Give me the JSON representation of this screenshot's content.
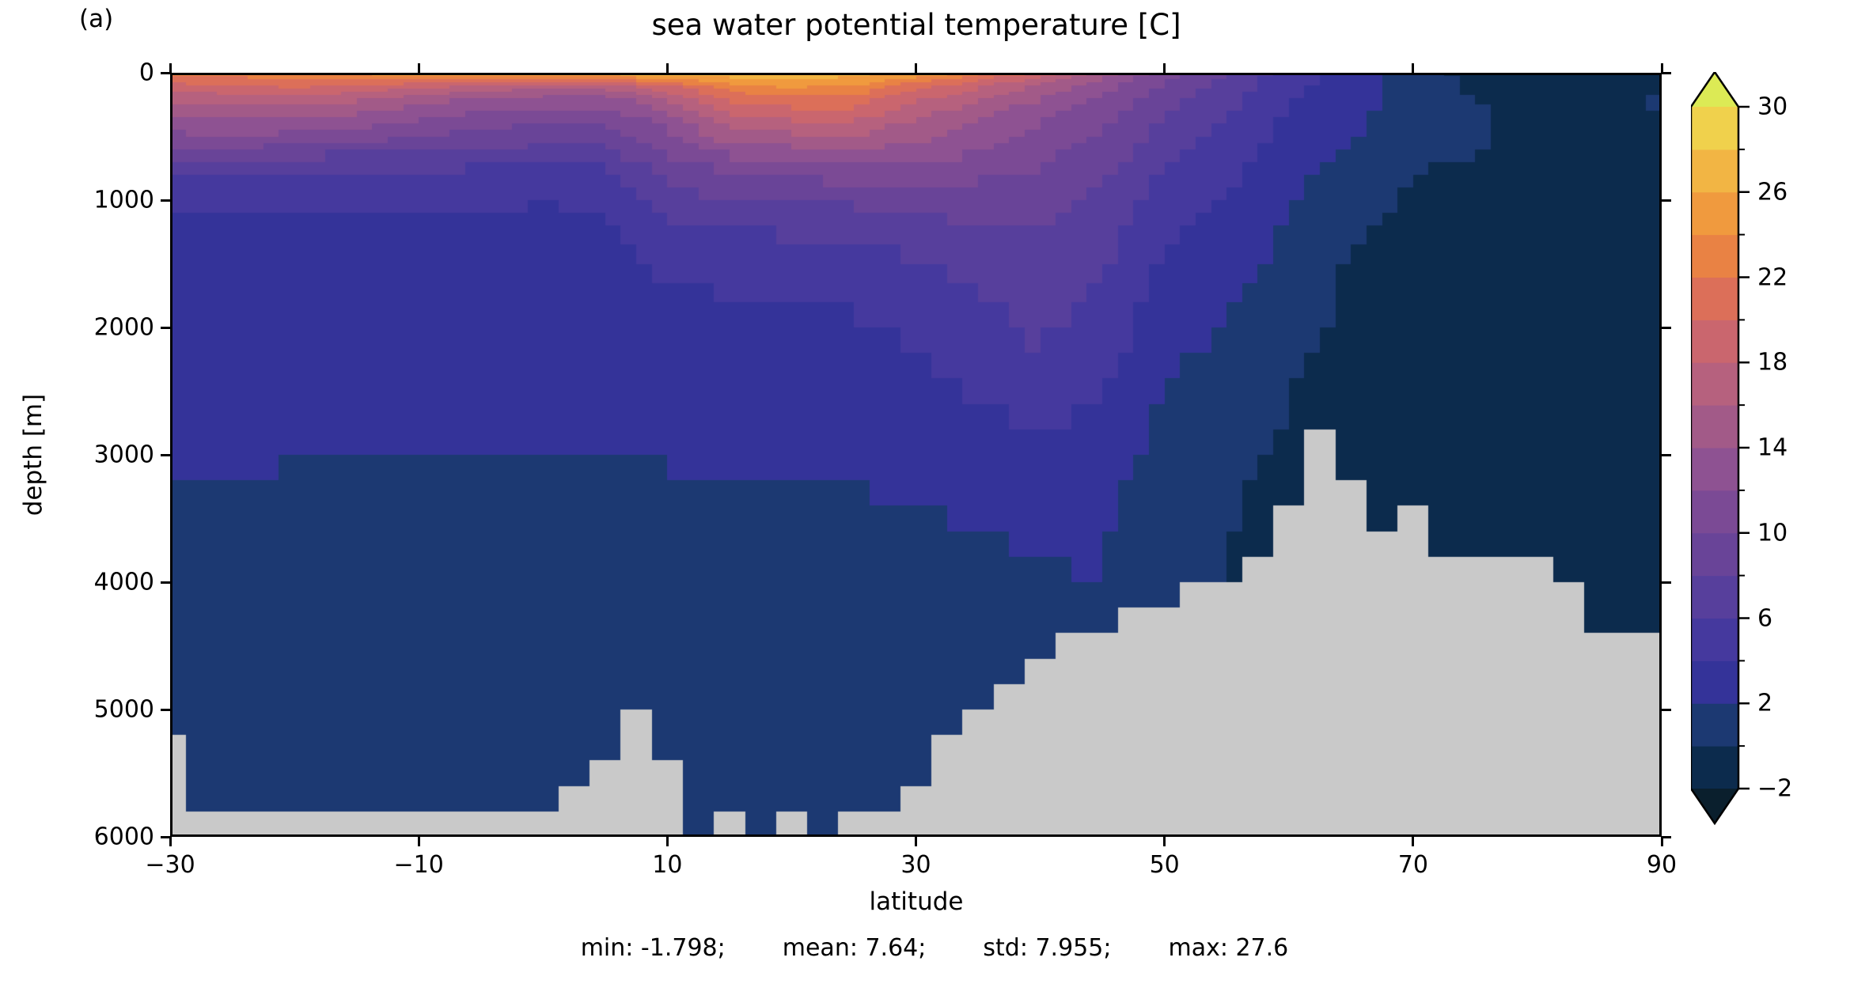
{
  "chart_data": {
    "type": "heatmap",
    "panel_label": "(a)",
    "title": "sea water potential temperature [C]",
    "xlabel": "latitude",
    "ylabel": "depth [m]",
    "x_range": [
      -30,
      90
    ],
    "y_range": [
      0,
      6000
    ],
    "y_inverted": true,
    "grid_lines": false,
    "x_ticks": [
      -30,
      -10,
      10,
      30,
      50,
      70,
      90
    ],
    "x_tick_labels": [
      "−30",
      "−10",
      "10",
      "30",
      "50",
      "70",
      "90"
    ],
    "y_ticks": [
      0,
      1000,
      2000,
      3000,
      4000,
      5000,
      6000
    ],
    "y_tick_labels": [
      "0",
      "1000",
      "2000",
      "3000",
      "4000",
      "5000",
      "6000"
    ],
    "grid": {
      "lats": [
        -30,
        -25,
        -20,
        -15,
        -10,
        -5,
        0,
        5,
        10,
        15,
        20,
        25,
        30,
        35,
        40,
        45,
        50,
        55,
        60,
        65,
        70,
        75,
        80,
        85,
        90
      ],
      "depths": [
        0,
        100,
        200,
        300,
        400,
        500,
        700,
        900,
        1100,
        1400,
        1700,
        2000,
        2400,
        2800,
        3200,
        3600,
        4000,
        4500,
        5000,
        5500,
        6000
      ],
      "temperature": [
        [
          22.5,
          23,
          23.5,
          24.5,
          25,
          26,
          26.5,
          27,
          27.5,
          27.5,
          27.5,
          27,
          25.5,
          23,
          19,
          15,
          11,
          8,
          5,
          3,
          0.3,
          -0.3,
          -0.6,
          -0.8,
          -1
        ],
        [
          19.5,
          20,
          20.5,
          20,
          19,
          18,
          17,
          17.5,
          20,
          23.5,
          24.5,
          24,
          21,
          18.5,
          15.8,
          12.8,
          9.8,
          7.2,
          4.6,
          3,
          0.8,
          -0.2,
          -0.6,
          -0.8,
          -1
        ],
        [
          16.5,
          17,
          17,
          16.5,
          15,
          14,
          13.5,
          13.5,
          16,
          20.5,
          21.5,
          21.5,
          18.5,
          16.5,
          14,
          11.8,
          9,
          6.7,
          4.2,
          2.8,
          1,
          -0.1,
          -0.6,
          -0.8,
          0.3
        ],
        [
          14.5,
          15,
          15,
          14.5,
          13,
          12,
          11.5,
          11.5,
          14,
          18.5,
          19.5,
          19.5,
          17,
          15,
          12.8,
          11,
          8.4,
          6.2,
          3.9,
          2.6,
          1,
          0.2,
          -0.6,
          -0.8,
          0.1
        ],
        [
          13,
          13.5,
          13,
          12.5,
          11.5,
          10.5,
          10,
          10,
          12.5,
          16.5,
          17.5,
          17.5,
          15.5,
          14,
          12,
          10.4,
          7.8,
          5.8,
          3.6,
          2.4,
          0.8,
          0.3,
          -0.7,
          -0.8,
          -1
        ],
        [
          11.5,
          12,
          11.5,
          11,
          10,
          9.5,
          9,
          9,
          11.5,
          15,
          15.5,
          16,
          14.5,
          13,
          11.3,
          9.8,
          7.2,
          5.4,
          3.3,
          2.2,
          0.5,
          0.2,
          -0.7,
          -0.9,
          -1
        ],
        [
          7.5,
          7.3,
          7,
          6.8,
          6.5,
          6.3,
          6.2,
          6.3,
          9.5,
          11,
          11.5,
          12,
          12,
          11.2,
          10.2,
          8.8,
          6.2,
          4.7,
          2.8,
          1.6,
          0.1,
          0,
          -0.8,
          -0.9,
          -1
        ],
        [
          5.5,
          5.4,
          5.2,
          5.1,
          5,
          4.9,
          4.8,
          4.9,
          8,
          9,
          9.3,
          9.6,
          10,
          9.6,
          9.2,
          8,
          5.3,
          4.1,
          2.4,
          1,
          -0.2,
          -0.5,
          -0.8,
          -1,
          -1.1
        ],
        [
          4.1,
          4,
          3.9,
          3.9,
          3.8,
          3.8,
          3.7,
          3.8,
          6.5,
          7,
          7.2,
          7.5,
          8.2,
          8.4,
          8.4,
          7.3,
          4.6,
          3.6,
          2,
          0.5,
          -0.4,
          -0.6,
          -0.9,
          -1,
          -1.1
        ],
        [
          3.5,
          3.4,
          3.3,
          3.3,
          3.2,
          3.2,
          3.1,
          3.2,
          4.8,
          5.1,
          5.2,
          5.5,
          6.3,
          7,
          7.4,
          6.4,
          3.8,
          3,
          1.5,
          0,
          -0.6,
          -0.7,
          -0.9,
          -1,
          -1.1
        ],
        [
          3.1,
          3,
          3,
          2.9,
          2.9,
          2.8,
          2.8,
          2.9,
          3.9,
          4.1,
          4.2,
          4.4,
          5.2,
          6,
          6.9,
          5.7,
          3.2,
          2.4,
          1,
          -0.3,
          -0.7,
          -0.8,
          -1,
          -1.1,
          -1.2
        ],
        [
          2.9,
          2.8,
          2.7,
          2.7,
          2.6,
          2.6,
          2.6,
          2.7,
          3.2,
          3.4,
          3.5,
          3.7,
          4.4,
          5.3,
          6.4,
          5.1,
          2.7,
          1.9,
          0.6,
          -0.5,
          -0.8,
          -0.9,
          -1,
          -1.1,
          -1.2
        ],
        [
          2.6,
          2.5,
          2.5,
          2.4,
          2.4,
          2.3,
          2.3,
          2.4,
          2.7,
          2.9,
          2.9,
          3,
          3.5,
          4.4,
          5.4,
          4.3,
          2.1,
          1.3,
          0.2,
          -0.8,
          -0.9,
          -1,
          -1.1,
          -1.2,
          -1.2
        ],
        [
          2.4,
          2.3,
          2.2,
          2.2,
          2.1,
          2.1,
          2.1,
          2.2,
          2.3,
          2.5,
          2.5,
          2.5,
          2.8,
          3.4,
          4.2,
          3.3,
          1.6,
          0.8,
          -0.2,
          -1,
          -1,
          -1.1,
          -1.1,
          -1.2,
          -1.3
        ],
        [
          2.1,
          2,
          1.9,
          1.9,
          1.8,
          1.8,
          1.8,
          1.9,
          1.9,
          2.1,
          2.1,
          2.1,
          2.2,
          2.6,
          2.9,
          2.4,
          1.1,
          0.4,
          -0.5,
          -1.1,
          -1.1,
          -1.1,
          -1.2,
          -1.2,
          -1.3
        ],
        [
          1.5,
          1.4,
          1.4,
          1.3,
          1.3,
          1.3,
          1.3,
          1.4,
          1.4,
          1.6,
          1.6,
          1.6,
          1.8,
          2,
          2.2,
          2.1,
          0.7,
          0.1,
          -0.7,
          -1.1,
          -1.1,
          -1.2,
          -1.2,
          -1.3,
          -1.3
        ],
        [
          1.2,
          1,
          1,
          0.9,
          1,
          0.9,
          0.9,
          1,
          1,
          1.2,
          1.2,
          1.3,
          1.4,
          1.6,
          1.7,
          2.2,
          0.4,
          -0.1,
          -0.8,
          -1.2,
          -1.2,
          -1.2,
          -1.3,
          -1.3,
          -1.3
        ],
        [
          0.9,
          0.8,
          0.8,
          0.7,
          0.7,
          0.7,
          0.7,
          0.8,
          0.8,
          1,
          1,
          1,
          1.1,
          1.2,
          1.3,
          1.1,
          0.3,
          -0.2,
          -0.9,
          -1.2,
          -1.2,
          -1.2,
          -1.3,
          -1.3,
          -1.3
        ],
        [
          0.7,
          0.6,
          0.6,
          0.6,
          0.6,
          0.6,
          0.6,
          0.7,
          0.7,
          0.8,
          0.8,
          0.9,
          0.9,
          1,
          1.1,
          1,
          0.2,
          -0.3,
          -0.9,
          -1.2,
          -1.2,
          -1.3,
          -1.3,
          -1.3,
          -1.4
        ],
        [
          0.6,
          0.5,
          0.5,
          0.5,
          0.5,
          0.5,
          0.5,
          0.6,
          0.6,
          0.7,
          0.7,
          0.8,
          0.8,
          0.9,
          1,
          0.9,
          0.2,
          -0.3,
          -1,
          -1.3,
          -1.3,
          -1.3,
          -1.3,
          -1.4,
          -1.4
        ],
        [
          0.5,
          0.5,
          0.5,
          0.4,
          0.4,
          0.4,
          0.5,
          0.5,
          0.5,
          0.6,
          0.6,
          0.7,
          0.7,
          0.8,
          0.9,
          0.8,
          0.1,
          -0.4,
          -1,
          -1.3,
          -1.3,
          -1.3,
          -1.4,
          -1.4,
          -1.4
        ]
      ]
    },
    "bathymetry": {
      "lats": [
        -30,
        -27.5,
        -25,
        -22.5,
        -20,
        -17.5,
        -15,
        -12.5,
        -10,
        -7.5,
        -5,
        -2.5,
        0,
        2.5,
        5,
        7.5,
        10,
        12.5,
        15,
        17.5,
        20,
        22.5,
        25,
        27.5,
        30,
        32.5,
        35,
        37.5,
        40,
        42.5,
        45,
        47.5,
        50,
        52.5,
        55,
        57.5,
        60,
        62.5,
        65,
        67.5,
        70,
        72.5,
        75,
        77.5,
        80,
        82.5,
        85,
        87.5,
        90
      ],
      "floor_depth": [
        5200,
        5750,
        5750,
        5750,
        5750,
        5750,
        5750,
        5750,
        5750,
        5750,
        5750,
        5750,
        5700,
        5600,
        5400,
        4900,
        5400,
        5900,
        5750,
        5950,
        5750,
        5950,
        5750,
        5750,
        5500,
        5200,
        5000,
        4800,
        4600,
        4400,
        4300,
        4250,
        4200,
        4000,
        3900,
        3700,
        3400,
        2850,
        3250,
        3600,
        3300,
        3800,
        3850,
        3850,
        3850,
        3900,
        4400,
        4400,
        4400
      ],
      "land_color": "#c9c9c9"
    },
    "render": {
      "lat_cell_width": 1.25,
      "depth_cell_edges": [
        0,
        25,
        50,
        75,
        100,
        125,
        150,
        175,
        200,
        250,
        300,
        350,
        400,
        450,
        500,
        550,
        600,
        700,
        800,
        900,
        1000,
        1100,
        1200,
        1350,
        1500,
        1650,
        1800,
        2000,
        2200,
        2400,
        2600,
        2800,
        3000,
        3200,
        3400,
        3600,
        3800,
        4000,
        4200,
        4400,
        4600,
        4800,
        5000,
        5200,
        5400,
        5600,
        5800,
        6000
      ]
    },
    "colorbar": {
      "extend": "both",
      "level_min": -2,
      "level_max": 30,
      "level_step": 2,
      "ticks": [
        -2,
        2,
        6,
        10,
        14,
        18,
        22,
        26,
        30
      ],
      "tick_labels": [
        "−2",
        "2",
        "6",
        "10",
        "14",
        "18",
        "22",
        "26",
        "30"
      ],
      "minor_ticks": [
        0,
        4,
        8,
        12,
        16,
        20,
        24,
        28
      ],
      "colors": [
        "#0a1f2d",
        "#0c2b4d",
        "#1c3972",
        "#343399",
        "#45399e",
        "#573f9c",
        "#694498",
        "#7b4a95",
        "#8e5292",
        "#a25a88",
        "#b6617e",
        "#ca666e",
        "#dc6f59",
        "#e98244",
        "#f09a3e",
        "#f2b544",
        "#f0d14c",
        "#dcea55"
      ]
    },
    "stats": {
      "min_text": "min: -1.798;",
      "mean_text": "mean: 7.64;",
      "std_text": "std: 7.955;",
      "max_text": "max: 27.6"
    }
  }
}
